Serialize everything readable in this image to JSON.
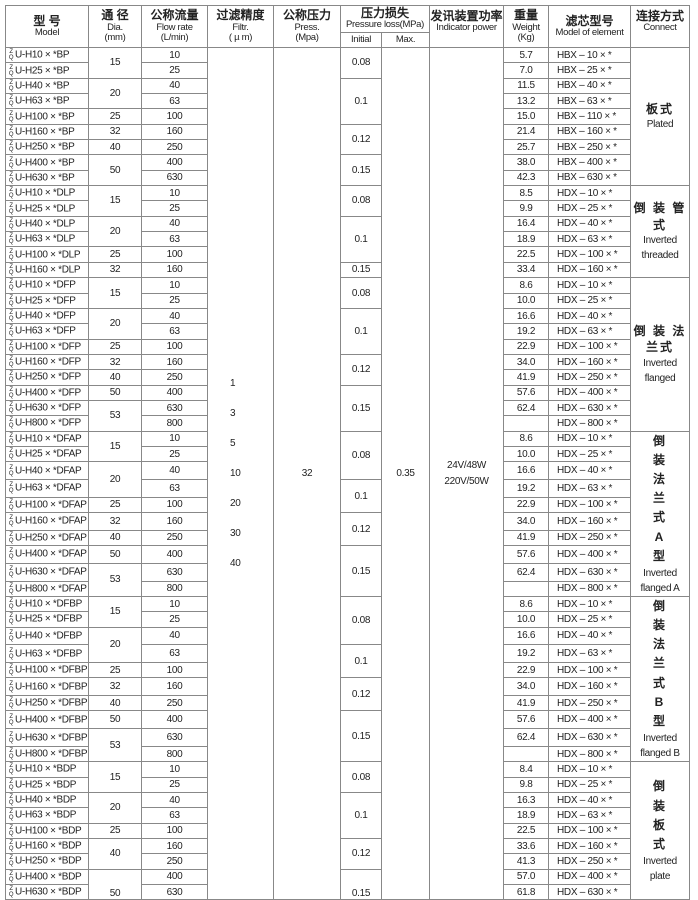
{
  "header": {
    "model": {
      "zh": "型 号",
      "en": "Model"
    },
    "dia": {
      "zh": "通 径",
      "en1": "Dia.",
      "en2": "(mm)"
    },
    "flow": {
      "zh": "公称流量",
      "en1": "Flow rate",
      "en2": "(L/min)"
    },
    "filtr": {
      "zh": "过滤精度",
      "en1": "Filtr.",
      "en2": "( µ m)"
    },
    "press": {
      "zh": "公称压力",
      "en1": "Press.",
      "en2": "(Mpa)"
    },
    "loss": {
      "zh": "压力损失",
      "en": "Pressure loss(MPa)",
      "initial": "Initial",
      "max": "Max."
    },
    "indicator": {
      "zh": "发讯装置功率",
      "en": "Indicator power"
    },
    "weight": {
      "zh": "重量",
      "en1": "Weight",
      "en2": "(Kg)"
    },
    "element": {
      "zh": "滤芯型号",
      "en": "Model of element"
    },
    "connect": {
      "zh": "连接方式",
      "en": "Connect"
    }
  },
  "model_prefix": [
    "Z",
    "Q"
  ],
  "shared": {
    "filtr": [
      "1",
      "3",
      "5",
      "10",
      "20",
      "30",
      "40"
    ],
    "press": "32",
    "max_loss": "0.35",
    "indicator": [
      "24V/48W",
      "220V/50W"
    ]
  },
  "groups": [
    {
      "connect": {
        "zh": "板式",
        "en": [
          "Plated"
        ]
      },
      "rows": [
        [
          "U-H10 × *BP",
          "10",
          "5.7",
          "HBX – 10 × *"
        ],
        [
          "U-H25 × *BP",
          "25",
          "7.0",
          "HBX – 25 × *"
        ],
        [
          "U-H40 × *BP",
          "40",
          "11.5",
          "HBX – 40 × *"
        ],
        [
          "U-H63 × *BP",
          "63",
          "13.2",
          "HBX – 63 × *"
        ],
        [
          "U-H100 × *BP",
          "100",
          "15.0",
          "HBX – 110 × *"
        ],
        [
          "U-H160 × *BP",
          "160",
          "21.4",
          "HBX – 160 × *"
        ],
        [
          "U-H250 × *BP",
          "250",
          "25.7",
          "HBX – 250 × *"
        ],
        [
          "U-H400 × *BP",
          "400",
          "38.0",
          "HBX – 400 × *"
        ],
        [
          "U-H630 × *BP",
          "630",
          "42.3",
          "HBX – 630 × *"
        ]
      ],
      "dia": [
        [
          "15",
          2
        ],
        [
          "20",
          2
        ],
        [
          "25",
          1
        ],
        [
          "32",
          1
        ],
        [
          "40",
          1
        ],
        [
          "50",
          2
        ]
      ],
      "initial": [
        [
          "0.08",
          2
        ],
        [
          "0.1",
          3
        ],
        [
          "0.12",
          2
        ],
        [
          "0.15",
          2
        ]
      ]
    },
    {
      "connect": {
        "zh": "倒 装 管 式",
        "en": [
          "Inverted",
          "threaded"
        ]
      },
      "rows": [
        [
          "U-H10 × *DLP",
          "10",
          "8.5",
          "HDX – 10 × *"
        ],
        [
          "U-H25 × *DLP",
          "25",
          "9.9",
          "HDX – 25 × *"
        ],
        [
          "U-H40 × *DLP",
          "40",
          "16.4",
          "HDX – 40 × *"
        ],
        [
          "U-H63 × *DLP",
          "63",
          "18.9",
          "HDX – 63 × *"
        ],
        [
          "U-H100 × *DLP",
          "100",
          "22.5",
          "HDX – 100 × *"
        ],
        [
          "U-H160 × *DLP",
          "160",
          "33.4",
          "HDX – 160 × *"
        ]
      ],
      "dia": [
        [
          "15",
          2
        ],
        [
          "20",
          2
        ],
        [
          "25",
          1
        ],
        [
          "32",
          1
        ]
      ],
      "initial": [
        [
          "0.08",
          2
        ],
        [
          "0.1",
          3
        ],
        [
          "0.15",
          1
        ]
      ]
    },
    {
      "connect": {
        "zh": "倒 装 法兰式",
        "en": [
          "Inverted",
          "flanged"
        ]
      },
      "rows": [
        [
          "U-H10 × *DFP",
          "10",
          "8.6",
          "HDX – 10 × *"
        ],
        [
          "U-H25 × *DFP",
          "25",
          "10.0",
          "HDX – 25 × *"
        ],
        [
          "U-H40 × *DFP",
          "40",
          "16.6",
          "HDX – 40 × *"
        ],
        [
          "U-H63 × *DFP",
          "63",
          "19.2",
          "HDX – 63 × *"
        ],
        [
          "U-H100 × *DFP",
          "100",
          "22.9",
          "HDX – 100 × *"
        ],
        [
          "U-H160 × *DFP",
          "160",
          "34.0",
          "HDX – 160 × *"
        ],
        [
          "U-H250 × *DFP",
          "250",
          "41.9",
          "HDX – 250 × *"
        ],
        [
          "U-H400 × *DFP",
          "400",
          "57.6",
          "HDX – 400 × *"
        ],
        [
          "U-H630 × *DFP",
          "630",
          "62.4",
          "HDX – 630 × *"
        ],
        [
          "U-H800 × *DFP",
          "800",
          "",
          "HDX – 800 × *"
        ]
      ],
      "dia": [
        [
          "15",
          2
        ],
        [
          "20",
          2
        ],
        [
          "25",
          1
        ],
        [
          "32",
          1
        ],
        [
          "40",
          1
        ],
        [
          "50",
          1
        ],
        [
          "53",
          2
        ]
      ],
      "initial": [
        [
          "0.08",
          2
        ],
        [
          "0.1",
          3
        ],
        [
          "0.12",
          2
        ],
        [
          "0.15",
          3
        ]
      ]
    },
    {
      "connect": {
        "zh": "倒装法兰式A型",
        "en": [
          "Inverted",
          "flanged A"
        ]
      },
      "vertical": true,
      "rows": [
        [
          "U-H10 × *DFAP",
          "10",
          "8.6",
          "HDX – 10 × *"
        ],
        [
          "U-H25 × *DFAP",
          "25",
          "10.0",
          "HDX – 25 × *"
        ],
        [
          "U-H40 × *DFAP",
          "40",
          "16.6",
          "HDX – 40 × *"
        ],
        [
          "U-H63 × *DFAP",
          "63",
          "19.2",
          "HDX – 63 × *"
        ],
        [
          "U-H100 × *DFAP",
          "100",
          "22.9",
          "HDX – 100 × *"
        ],
        [
          "U-H160 × *DFAP",
          "160",
          "34.0",
          "HDX – 160 × *"
        ],
        [
          "U-H250 × *DFAP",
          "250",
          "41.9",
          "HDX – 250 × *"
        ],
        [
          "U-H400 × *DFAP",
          "400",
          "57.6",
          "HDX – 400 × *"
        ],
        [
          "U-H630 × *DFAP",
          "630",
          "62.4",
          "HDX – 630 × *"
        ],
        [
          "U-H800 × *DFAP",
          "800",
          "",
          "HDX – 800 × *"
        ]
      ],
      "dia": [
        [
          "15",
          2
        ],
        [
          "20",
          2
        ],
        [
          "25",
          1
        ],
        [
          "32",
          1
        ],
        [
          "40",
          1
        ],
        [
          "50",
          1
        ],
        [
          "53",
          2
        ]
      ],
      "initial": [
        [
          "0.08",
          3
        ],
        [
          "0.1",
          2
        ],
        [
          "0.12",
          2
        ],
        [
          "0.15",
          3
        ]
      ]
    },
    {
      "connect": {
        "zh": "倒装法兰式B型",
        "en": [
          "Inverted",
          "flanged B"
        ]
      },
      "vertical": true,
      "rows": [
        [
          "U-H10 × *DFBP",
          "10",
          "8.6",
          "HDX – 10 × *"
        ],
        [
          "U-H25 × *DFBP",
          "25",
          "10.0",
          "HDX – 25 × *"
        ],
        [
          "U-H40 × *DFBP",
          "40",
          "16.6",
          "HDX – 40 × *"
        ],
        [
          "U-H63 × *DFBP",
          "63",
          "19.2",
          "HDX – 63 × *"
        ],
        [
          "U-H100 × *DFBP",
          "100",
          "22.9",
          "HDX – 100 × *"
        ],
        [
          "U-H160 × *DFBP",
          "160",
          "34.0",
          "HDX – 160 × *"
        ],
        [
          "U-H250 × *DFBP",
          "250",
          "41.9",
          "HDX – 250 × *"
        ],
        [
          "U-H400 × *DFBP",
          "400",
          "57.6",
          "HDX – 400 × *"
        ],
        [
          "U-H630 × *DFBP",
          "630",
          "62.4",
          "HDX – 630 × *"
        ],
        [
          "U-H800 × *DFBP",
          "800",
          "",
          "HDX – 800 × *"
        ]
      ],
      "dia": [
        [
          "15",
          2
        ],
        [
          "20",
          2
        ],
        [
          "25",
          1
        ],
        [
          "32",
          1
        ],
        [
          "40",
          1
        ],
        [
          "50",
          1
        ],
        [
          "53",
          2
        ]
      ],
      "initial": [
        [
          "0.08",
          3
        ],
        [
          "0.1",
          2
        ],
        [
          "0.12",
          2
        ],
        [
          "0.15",
          3
        ]
      ]
    },
    {
      "connect": {
        "zh": "倒装板式",
        "en": [
          "Inverted",
          "plate"
        ]
      },
      "vertical": true,
      "rows": [
        [
          "U-H10 × *BDP",
          "10",
          "8.4",
          "HDX – 10 × *"
        ],
        [
          "U-H25 × *BDP",
          "25",
          "9.8",
          "HDX – 25 × *"
        ],
        [
          "U-H40 × *BDP",
          "40",
          "16.3",
          "HDX – 40 × *"
        ],
        [
          "U-H63 × *BDP",
          "63",
          "18.9",
          "HDX – 63 × *"
        ],
        [
          "U-H100 × *BDP",
          "100",
          "22.5",
          "HDX – 100 × *"
        ],
        [
          "U-H160 × *BDP",
          "160",
          "33.6",
          "HDX – 160 × *"
        ],
        [
          "U-H250 × *BDP",
          "250",
          "41.3",
          "HDX – 250 × *"
        ],
        [
          "U-H400 × *BDP",
          "400",
          "57.0",
          "HDX – 400 × *"
        ],
        [
          "U-H630 × *BDP",
          "630",
          "61.8",
          "HDX – 630 × *"
        ]
      ],
      "dia": [
        [
          "15",
          2
        ],
        [
          "20",
          2
        ],
        [
          "25",
          1
        ],
        [
          "40",
          2
        ],
        [
          "50",
          2
        ]
      ],
      "initial": [
        [
          "0.08",
          2
        ],
        [
          "0.1",
          3
        ],
        [
          "0.12",
          2
        ],
        [
          "0.15",
          2
        ]
      ]
    }
  ]
}
